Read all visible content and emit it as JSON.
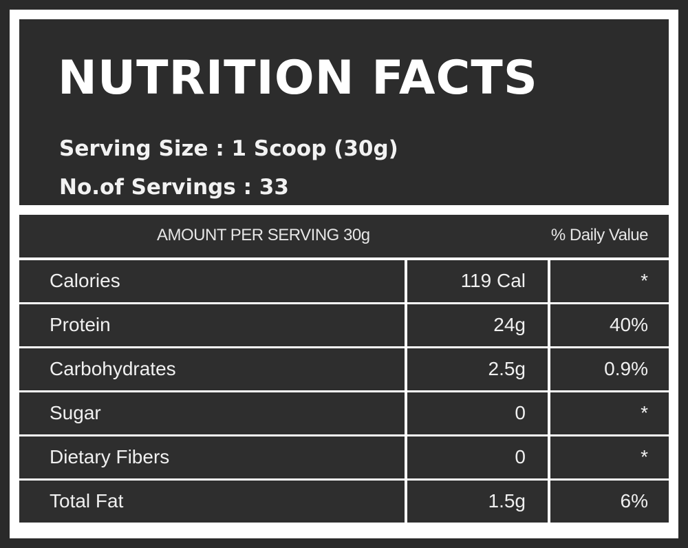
{
  "header": {
    "title": "NUTRITION FACTS",
    "serving_size": "Serving Size : 1 Scoop (30g)",
    "servings": "No.of Servings : 33"
  },
  "table": {
    "amount_header": "AMOUNT PER SERVING 30g",
    "daily_value_header": "% Daily Value",
    "rows": [
      {
        "nutrient": "Calories",
        "amount": "119 Cal",
        "daily_value": "*"
      },
      {
        "nutrient": "Protein",
        "amount": "24g",
        "daily_value": "40%"
      },
      {
        "nutrient": "Carbohydrates",
        "amount": "2.5g",
        "daily_value": "0.9%"
      },
      {
        "nutrient": "Sugar",
        "amount": "0",
        "daily_value": "*"
      },
      {
        "nutrient": "Dietary Fibers",
        "amount": "0",
        "daily_value": "*"
      },
      {
        "nutrient": "Total Fat",
        "amount": "1.5g",
        "daily_value": "6%"
      }
    ]
  },
  "colors": {
    "background": "#2a2a2a",
    "panel": "#2e2e2e",
    "border": "#ffffff",
    "text": "#ffffff"
  }
}
